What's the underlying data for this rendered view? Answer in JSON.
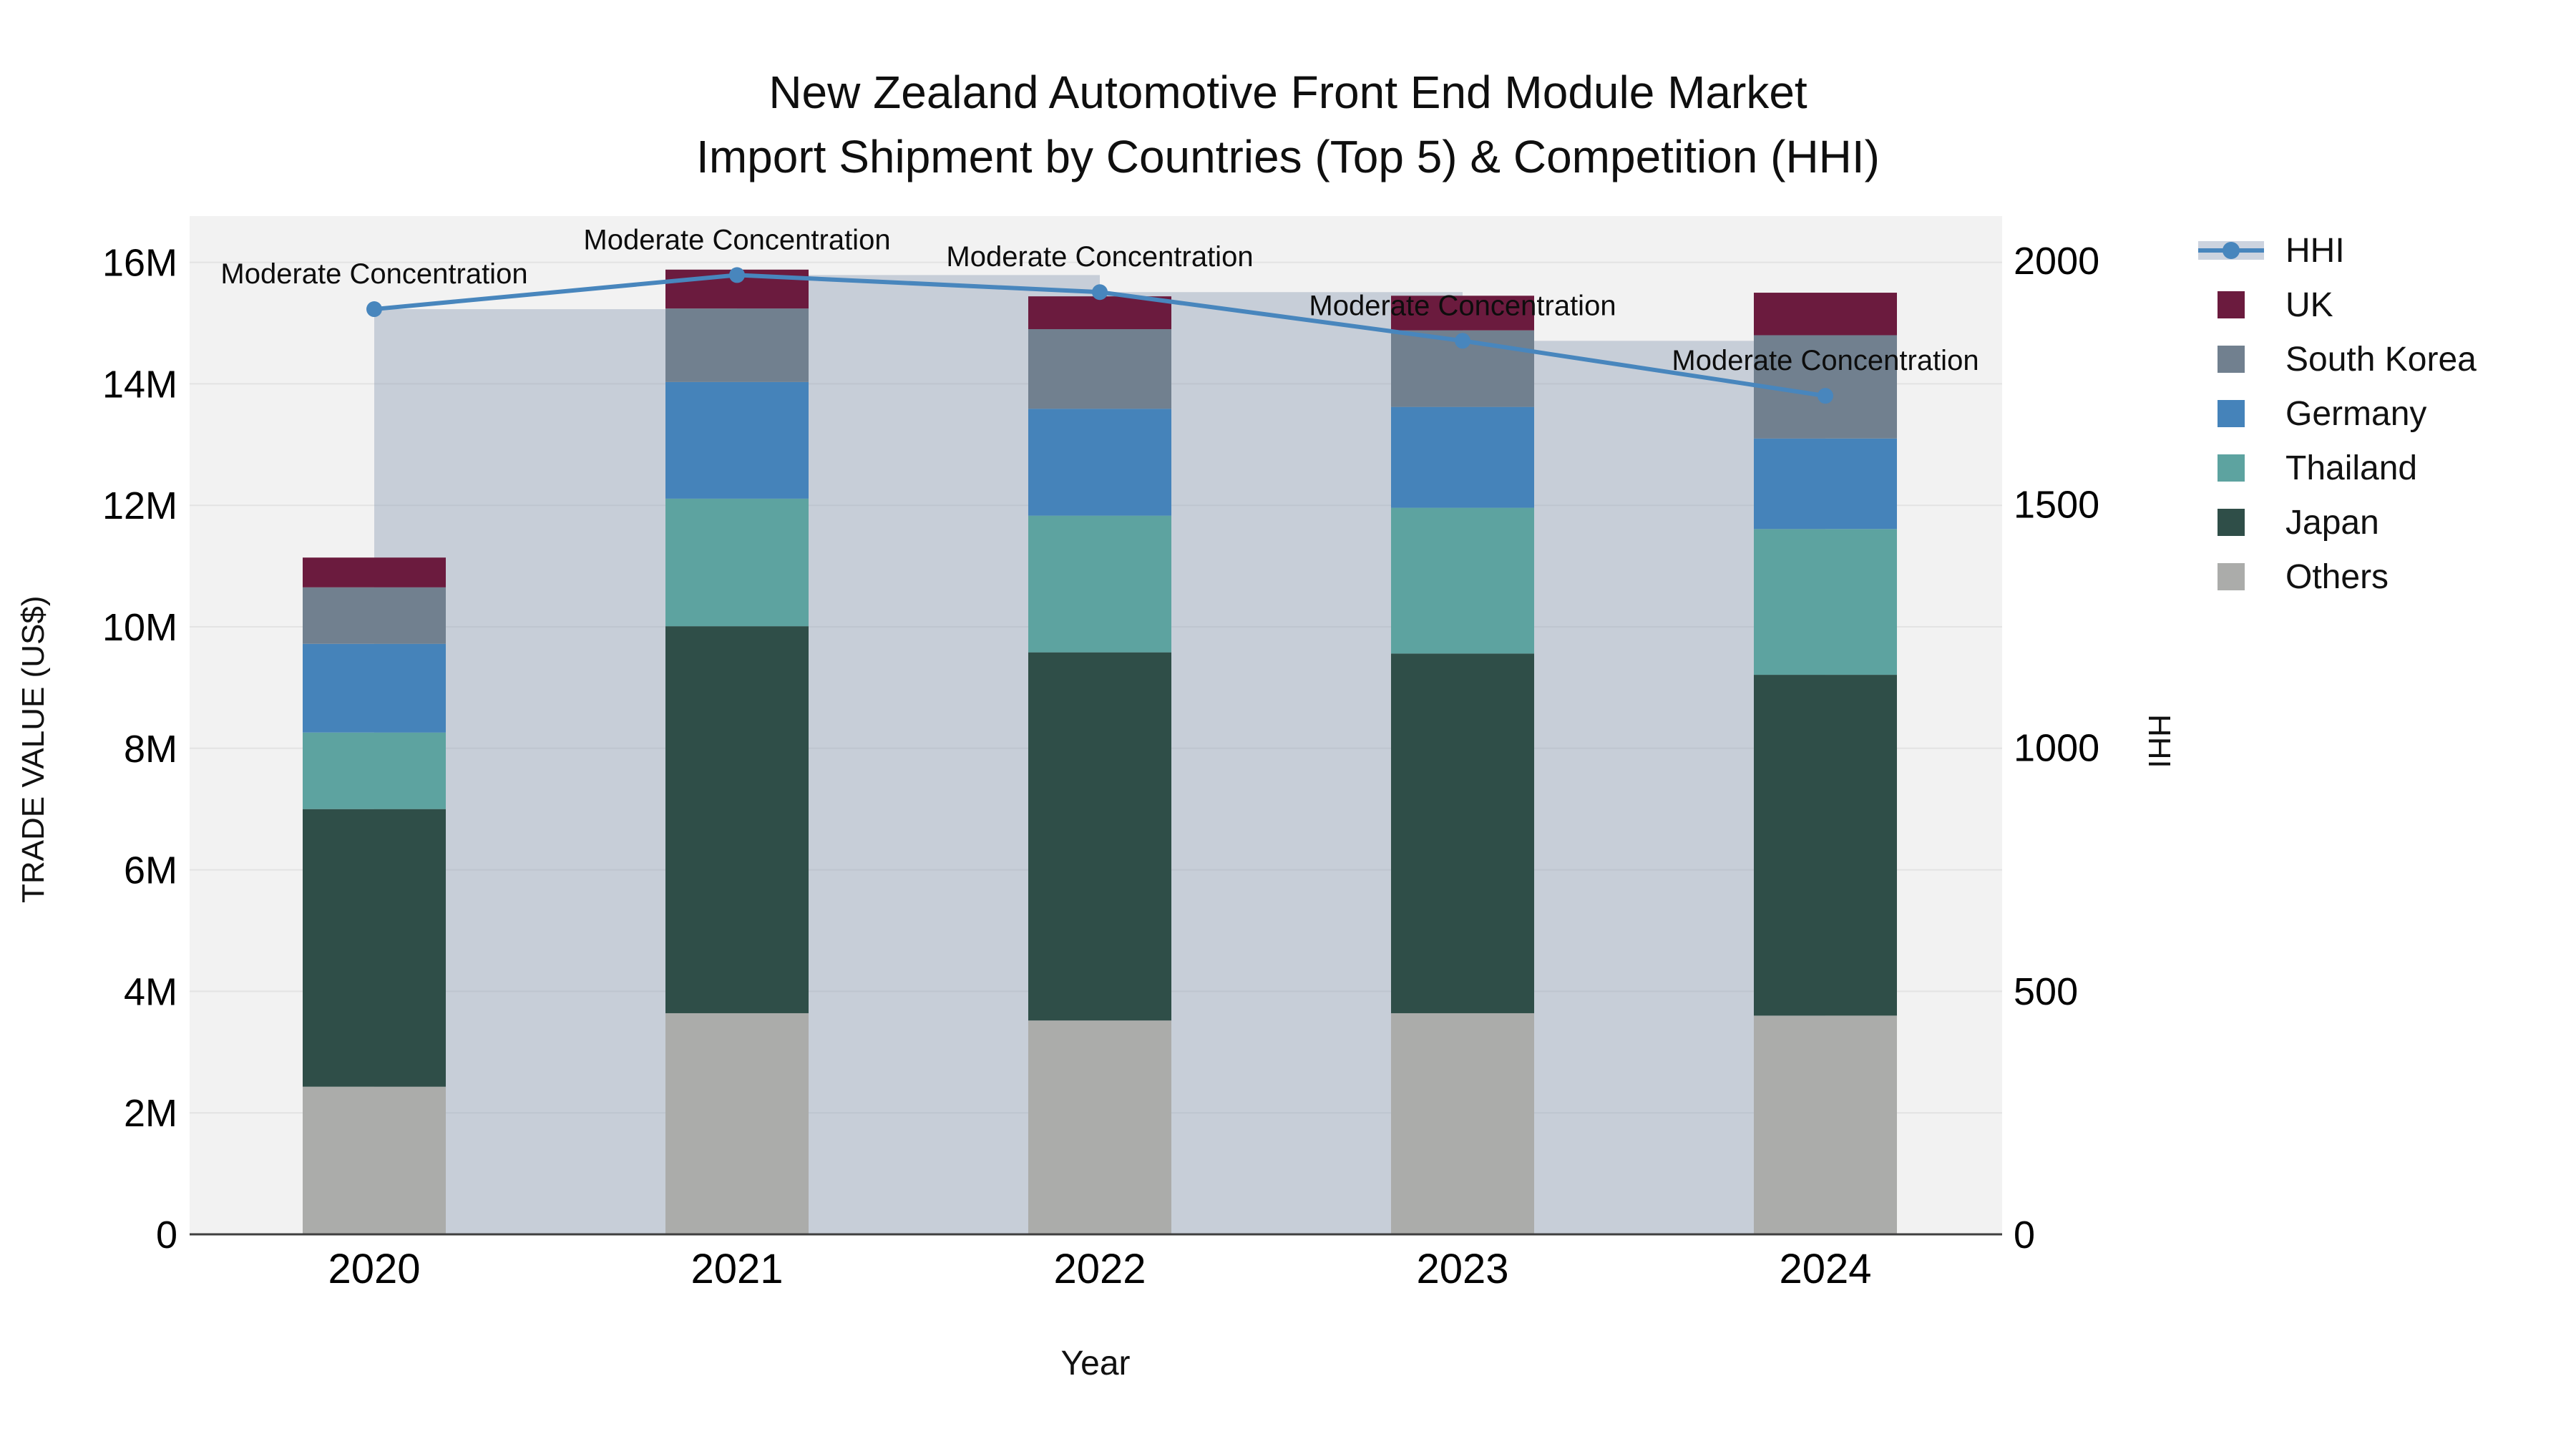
{
  "title": {
    "line1": "New Zealand Automotive Front End Module Market",
    "line2": "Import Shipment by Countries (Top 5) & Competition (HHI)"
  },
  "axes": {
    "x": {
      "label": "Year",
      "categories": [
        "2020",
        "2021",
        "2022",
        "2023",
        "2024"
      ]
    },
    "y_left": {
      "label": "TRADE VALUE (US$)",
      "ticks": [
        "0",
        "2M",
        "4M",
        "6M",
        "8M",
        "10M",
        "12M",
        "14M",
        "16M"
      ],
      "tick_values_M": [
        0,
        2,
        4,
        6,
        8,
        10,
        12,
        14,
        16
      ]
    },
    "y_right": {
      "label": "HHI",
      "ticks": [
        "0",
        "500",
        "1000",
        "1500",
        "2000"
      ],
      "tick_values": [
        0,
        500,
        1000,
        1500,
        2000
      ]
    }
  },
  "legend": {
    "items": [
      {
        "label": "HHI",
        "type": "line",
        "color": "#4886bd",
        "swatch": "#ccd3df"
      },
      {
        "label": "UK",
        "type": "box",
        "color": "#6b1b3e"
      },
      {
        "label": "South Korea",
        "type": "box",
        "color": "#71808f"
      },
      {
        "label": "Germany",
        "type": "box",
        "color": "#4583ba"
      },
      {
        "label": "Thailand",
        "type": "box",
        "color": "#5da3a0"
      },
      {
        "label": "Japan",
        "type": "box",
        "color": "#2f4e48"
      },
      {
        "label": "Others",
        "type": "box",
        "color": "#abacaa"
      }
    ]
  },
  "chart_data": {
    "type": "bar",
    "subtype": "stacked bars (trade value, left axis) + HHI line with translucent backdrop bars (right axis)",
    "categories": [
      "2020",
      "2021",
      "2022",
      "2023",
      "2024"
    ],
    "unit": "USD millions",
    "series": [
      {
        "name": "Others",
        "color": "#abacaa",
        "values": [
          2.43,
          3.64,
          3.52,
          3.64,
          3.6
        ]
      },
      {
        "name": "Japan",
        "color": "#2f4e48",
        "values": [
          4.57,
          6.37,
          6.06,
          5.92,
          5.61
        ]
      },
      {
        "name": "Thailand",
        "color": "#5da3a0",
        "values": [
          1.26,
          2.1,
          2.25,
          2.4,
          2.4
        ]
      },
      {
        "name": "Germany",
        "color": "#4583ba",
        "values": [
          1.46,
          1.92,
          1.76,
          1.66,
          1.49
        ]
      },
      {
        "name": "South Korea",
        "color": "#71808f",
        "values": [
          0.93,
          1.21,
          1.31,
          1.26,
          1.7
        ]
      },
      {
        "name": "UK",
        "color": "#6b1b3e",
        "values": [
          0.49,
          0.64,
          0.54,
          0.57,
          0.7
        ]
      }
    ],
    "totals_M": [
      11.14,
      15.88,
      15.44,
      15.45,
      15.5
    ],
    "hhi": {
      "name": "HHI",
      "color": "#4886bd",
      "values": [
        1900,
        1970,
        1935,
        1835,
        1722
      ],
      "bar_fill": "rgba(120,140,168,0.35)",
      "backdrop_bars_drawn": [
        true,
        true,
        true,
        true,
        false
      ]
    },
    "annotations": [
      "Moderate Concentration",
      "Moderate Concentration",
      "Moderate Concentration",
      "Moderate Concentration",
      "Moderate Concentration"
    ],
    "ylim_left_M": [
      0,
      16.8
    ],
    "ylim_right": [
      0,
      2100
    ],
    "grid": true,
    "legend_position": "right",
    "plot_bg": "#f2f2f2",
    "grid_color": "#e3e3e3",
    "axis_line_color": "#3f3f3f"
  }
}
